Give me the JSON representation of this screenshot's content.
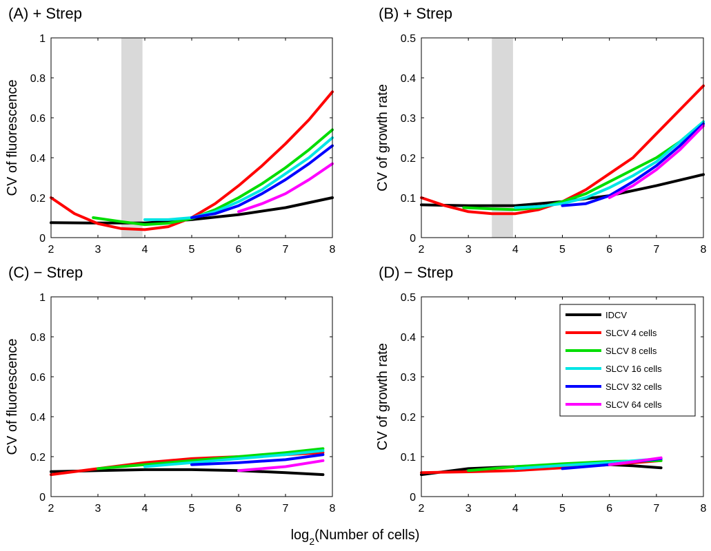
{
  "figure": {
    "xlabel_main": "log",
    "xlabel_sub": "2",
    "xlabel_rest": "(Number of cells)"
  },
  "legend": {
    "entries": [
      {
        "name": "IDCV",
        "color": "#000000"
      },
      {
        "name": "SLCV 4 cells",
        "color": "#ff0000"
      },
      {
        "name": "SLCV 8 cells",
        "color": "#00dd00"
      },
      {
        "name": "SLCV 16 cells",
        "color": "#00e5e5"
      },
      {
        "name": "SLCV 32 cells",
        "color": "#0000ff"
      },
      {
        "name": "SLCV 64 cells",
        "color": "#ff00ff"
      }
    ]
  },
  "chart_data": [
    {
      "type": "line",
      "id": "A",
      "title": "(A)  + Strep",
      "ylabel": "CV of fluorescence",
      "xlim": [
        2,
        8
      ],
      "ylim": [
        0,
        1
      ],
      "xticks": [
        2,
        3,
        4,
        5,
        6,
        7,
        8
      ],
      "yticks": [
        0,
        0.2,
        0.4,
        0.6,
        0.8,
        1
      ],
      "ytick_labels": [
        "0",
        "0.2",
        "0.4",
        "0.6",
        "0.8",
        "1"
      ],
      "shaded_x": [
        3.5,
        3.95
      ],
      "series": [
        {
          "name": "IDCV",
          "color": "#000000",
          "x": [
            2,
            3,
            4,
            5,
            6,
            7,
            8
          ],
          "y": [
            0.075,
            0.073,
            0.073,
            0.09,
            0.115,
            0.15,
            0.2
          ]
        },
        {
          "name": "SLCV 4 cells",
          "color": "#ff0000",
          "x": [
            2,
            2.5,
            3,
            3.5,
            4,
            4.5,
            5,
            5.5,
            6,
            6.5,
            7,
            7.5,
            8
          ],
          "y": [
            0.2,
            0.12,
            0.07,
            0.045,
            0.04,
            0.055,
            0.1,
            0.17,
            0.26,
            0.36,
            0.47,
            0.59,
            0.73
          ]
        },
        {
          "name": "SLCV 8 cells",
          "color": "#00dd00",
          "x": [
            2.9,
            3.5,
            4,
            4.5,
            5,
            5.5,
            6,
            6.5,
            7,
            7.5,
            8
          ],
          "y": [
            0.1,
            0.08,
            0.065,
            0.072,
            0.095,
            0.14,
            0.2,
            0.27,
            0.35,
            0.44,
            0.54
          ]
        },
        {
          "name": "SLCV 16 cells",
          "color": "#00e5e5",
          "x": [
            4,
            4.5,
            5,
            5.5,
            6,
            6.5,
            7,
            7.5,
            8
          ],
          "y": [
            0.09,
            0.09,
            0.1,
            0.13,
            0.18,
            0.24,
            0.32,
            0.4,
            0.5
          ]
        },
        {
          "name": "SLCV 32 cells",
          "color": "#0000ff",
          "x": [
            5,
            5.5,
            6,
            6.5,
            7,
            7.5,
            8
          ],
          "y": [
            0.1,
            0.12,
            0.16,
            0.22,
            0.29,
            0.37,
            0.46
          ]
        },
        {
          "name": "SLCV 64 cells",
          "color": "#ff00ff",
          "x": [
            6,
            6.5,
            7,
            7.5,
            8
          ],
          "y": [
            0.13,
            0.17,
            0.22,
            0.29,
            0.37
          ]
        }
      ]
    },
    {
      "type": "line",
      "id": "B",
      "title": "(B)  + Strep",
      "ylabel": "CV of growth rate",
      "xlim": [
        2,
        8
      ],
      "ylim": [
        0,
        0.5
      ],
      "xticks": [
        2,
        3,
        4,
        5,
        6,
        7,
        8
      ],
      "yticks": [
        0,
        0.1,
        0.2,
        0.3,
        0.4,
        0.5
      ],
      "ytick_labels": [
        "0",
        "0.1",
        "0.2",
        "0.3",
        "0.4",
        "0.5"
      ],
      "shaded_x": [
        3.5,
        3.95
      ],
      "series": [
        {
          "name": "IDCV",
          "color": "#000000",
          "x": [
            2,
            3,
            4,
            5,
            6,
            7,
            8
          ],
          "y": [
            0.082,
            0.08,
            0.08,
            0.09,
            0.105,
            0.13,
            0.158
          ]
        },
        {
          "name": "SLCV 4 cells",
          "color": "#ff0000",
          "x": [
            2,
            2.5,
            3,
            3.5,
            4,
            4.5,
            5,
            5.5,
            6,
            6.5,
            7,
            7.5,
            8
          ],
          "y": [
            0.1,
            0.08,
            0.065,
            0.06,
            0.06,
            0.07,
            0.09,
            0.12,
            0.16,
            0.2,
            0.26,
            0.32,
            0.38
          ]
        },
        {
          "name": "SLCV 8 cells",
          "color": "#00dd00",
          "x": [
            2.9,
            3.5,
            4,
            4.5,
            5,
            5.5,
            6,
            6.5,
            7,
            7.5,
            8
          ],
          "y": [
            0.075,
            0.072,
            0.07,
            0.075,
            0.09,
            0.11,
            0.14,
            0.17,
            0.2,
            0.24,
            0.29
          ]
        },
        {
          "name": "SLCV 16 cells",
          "color": "#00e5e5",
          "x": [
            4,
            4.5,
            5,
            5.5,
            6,
            6.5,
            7,
            7.5,
            8
          ],
          "y": [
            0.075,
            0.078,
            0.085,
            0.1,
            0.125,
            0.155,
            0.19,
            0.24,
            0.29
          ]
        },
        {
          "name": "SLCV 32 cells",
          "color": "#0000ff",
          "x": [
            5,
            5.5,
            6,
            6.5,
            7,
            7.5,
            8
          ],
          "y": [
            0.08,
            0.085,
            0.105,
            0.14,
            0.18,
            0.23,
            0.285
          ]
        },
        {
          "name": "SLCV 64 cells",
          "color": "#ff00ff",
          "x": [
            6,
            6.5,
            7,
            7.5,
            8
          ],
          "y": [
            0.1,
            0.13,
            0.17,
            0.22,
            0.28
          ]
        }
      ]
    },
    {
      "type": "line",
      "id": "C",
      "title": "(C)  − Strep",
      "ylabel": "CV of fluorescence",
      "xlim": [
        2,
        8
      ],
      "ylim": [
        0,
        1
      ],
      "xticks": [
        2,
        3,
        4,
        5,
        6,
        7,
        8
      ],
      "yticks": [
        0,
        0.2,
        0.4,
        0.6,
        0.8,
        1
      ],
      "ytick_labels": [
        "0",
        "0.2",
        "0.4",
        "0.6",
        "0.8",
        "1"
      ],
      "series": [
        {
          "name": "IDCV",
          "color": "#000000",
          "x": [
            2,
            3,
            4,
            5,
            6,
            7,
            7.8
          ],
          "y": [
            0.125,
            0.13,
            0.135,
            0.135,
            0.13,
            0.12,
            0.11
          ]
        },
        {
          "name": "SLCV 4 cells",
          "color": "#ff0000",
          "x": [
            2,
            3,
            4,
            5,
            6,
            7,
            7.8
          ],
          "y": [
            0.11,
            0.14,
            0.17,
            0.19,
            0.2,
            0.21,
            0.22
          ]
        },
        {
          "name": "SLCV 8 cells",
          "color": "#00dd00",
          "x": [
            3,
            4,
            5,
            6,
            7,
            7.8
          ],
          "y": [
            0.14,
            0.16,
            0.18,
            0.2,
            0.22,
            0.24
          ]
        },
        {
          "name": "SLCV 16 cells",
          "color": "#00e5e5",
          "x": [
            4,
            5,
            6,
            7,
            7.8
          ],
          "y": [
            0.15,
            0.17,
            0.19,
            0.21,
            0.23
          ]
        },
        {
          "name": "SLCV 32 cells",
          "color": "#0000ff",
          "x": [
            5,
            6,
            7,
            7.8
          ],
          "y": [
            0.16,
            0.17,
            0.185,
            0.21
          ]
        },
        {
          "name": "SLCV 64 cells",
          "color": "#ff00ff",
          "x": [
            6,
            7,
            7.8
          ],
          "y": [
            0.13,
            0.15,
            0.18
          ]
        }
      ]
    },
    {
      "type": "line",
      "id": "D",
      "title": "(D)  − Strep",
      "ylabel": "CV of growth rate",
      "xlim": [
        2,
        8
      ],
      "ylim": [
        0,
        0.5
      ],
      "xticks": [
        2,
        3,
        4,
        5,
        6,
        7,
        8
      ],
      "yticks": [
        0,
        0.1,
        0.2,
        0.3,
        0.4,
        0.5
      ],
      "ytick_labels": [
        "0",
        "0.1",
        "0.2",
        "0.3",
        "0.4",
        "0.5"
      ],
      "series": [
        {
          "name": "IDCV",
          "color": "#000000",
          "x": [
            2,
            3,
            4,
            5,
            6,
            6.5,
            7.1
          ],
          "y": [
            0.055,
            0.07,
            0.075,
            0.08,
            0.08,
            0.077,
            0.072
          ]
        },
        {
          "name": "SLCV 4 cells",
          "color": "#ff0000",
          "x": [
            2,
            3,
            4,
            5,
            6,
            7.1
          ],
          "y": [
            0.06,
            0.062,
            0.065,
            0.072,
            0.08,
            0.09
          ]
        },
        {
          "name": "SLCV 8 cells",
          "color": "#00dd00",
          "x": [
            3,
            4,
            5,
            6,
            7.1
          ],
          "y": [
            0.065,
            0.075,
            0.082,
            0.088,
            0.09
          ]
        },
        {
          "name": "SLCV 16 cells",
          "color": "#00e5e5",
          "x": [
            4,
            5,
            6,
            7.1
          ],
          "y": [
            0.07,
            0.078,
            0.085,
            0.095
          ]
        },
        {
          "name": "SLCV 32 cells",
          "color": "#0000ff",
          "x": [
            5,
            6,
            7.1
          ],
          "y": [
            0.07,
            0.08,
            0.095
          ]
        },
        {
          "name": "SLCV 64 cells",
          "color": "#ff00ff",
          "x": [
            6,
            6.5,
            7.1
          ],
          "y": [
            0.08,
            0.087,
            0.097
          ]
        }
      ]
    }
  ]
}
